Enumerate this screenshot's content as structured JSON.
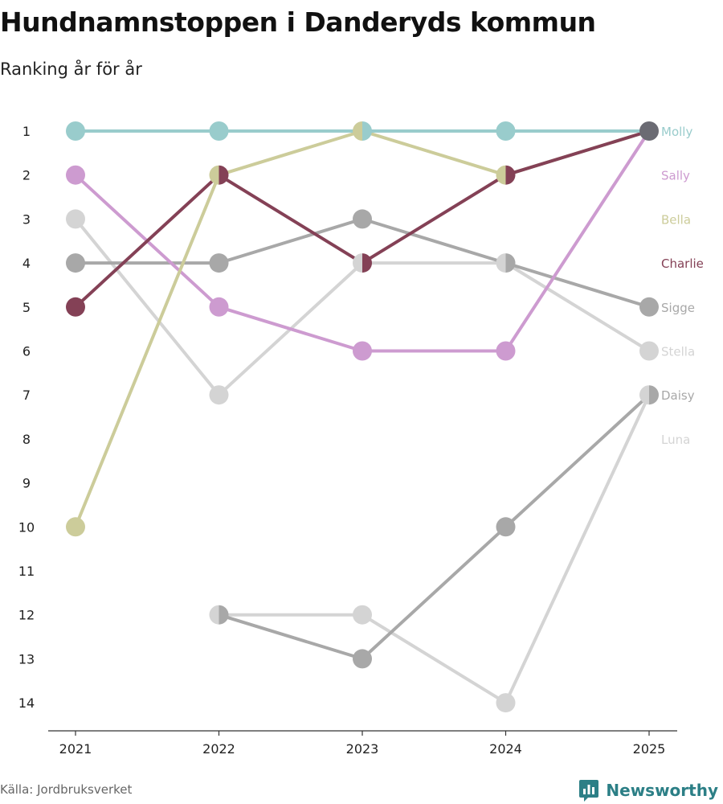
{
  "header": {
    "title": "Hundnamnstoppen i Danderyds kommun",
    "subtitle": "Ranking år för år"
  },
  "footer": {
    "source": "Källa: Jordbruksverket",
    "brand": "Newsworthy",
    "brand_icon": "bar-chart-logo-icon"
  },
  "chart_data": {
    "type": "line",
    "subtitle": "Ranking år för år",
    "xlabel": "",
    "ylabel": "",
    "x": [
      "2021",
      "2022",
      "2023",
      "2024",
      "2025"
    ],
    "y_ticks": [
      1,
      2,
      3,
      4,
      5,
      6,
      7,
      8,
      9,
      10,
      11,
      12,
      13,
      14
    ],
    "ylim": [
      14,
      1
    ],
    "y_inverted": true,
    "series": [
      {
        "name": "Luna",
        "color": "#d4d4d4",
        "values": [
          null,
          12,
          12,
          14,
          7
        ]
      },
      {
        "name": "Daisy",
        "color": "#a8a8a8",
        "values": [
          null,
          12,
          13,
          10,
          7
        ]
      },
      {
        "name": "Stella",
        "color": "#d4d4d4",
        "values": [
          3,
          7,
          4,
          4,
          6
        ]
      },
      {
        "name": "Sigge",
        "color": "#a8a8a8",
        "values": [
          4,
          4,
          3,
          4,
          5
        ]
      },
      {
        "name": "Sally",
        "color": "#cd9bd0",
        "values": [
          2,
          5,
          6,
          6,
          1
        ]
      },
      {
        "name": "Bella",
        "color": "#cccc9a",
        "values": [
          10,
          2,
          1,
          2,
          1
        ]
      },
      {
        "name": "Charlie",
        "color": "#844156",
        "values": [
          5,
          2,
          4,
          2,
          1
        ]
      },
      {
        "name": "Molly",
        "color": "#99cccc",
        "values": [
          1,
          1,
          1,
          1,
          1
        ]
      }
    ],
    "end_labels": [
      {
        "name": "Molly",
        "rank": 1,
        "color": "#99cccc"
      },
      {
        "name": "Sally",
        "rank": 2,
        "color": "#cd9bd0"
      },
      {
        "name": "Bella",
        "rank": 3,
        "color": "#cccc9a"
      },
      {
        "name": "Charlie",
        "rank": 4,
        "color": "#844156"
      },
      {
        "name": "Sigge",
        "rank": 5,
        "color": "#a8a8a8"
      },
      {
        "name": "Stella",
        "rank": 6,
        "color": "#d4d4d4"
      },
      {
        "name": "Daisy",
        "rank": 7,
        "color": "#a8a8a8"
      },
      {
        "name": "Luna",
        "rank": 8,
        "color": "#d4d4d4"
      }
    ],
    "tie_marker_color": "#6b6b73"
  }
}
